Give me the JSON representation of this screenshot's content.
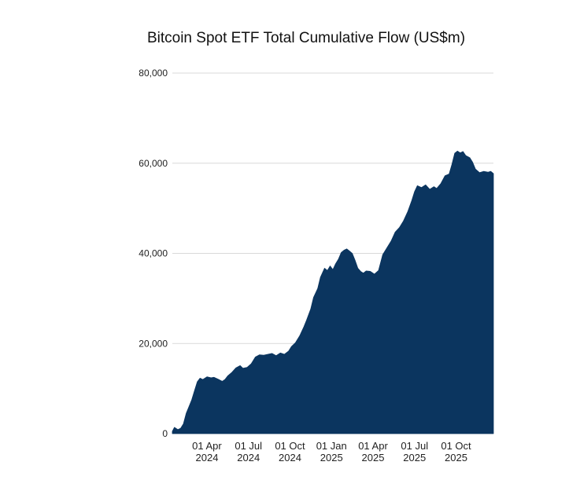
{
  "chart_data": {
    "type": "area",
    "title": "Bitcoin Spot ETF Total Cumulative Flow (US$m)",
    "xlabel": "",
    "ylabel": "",
    "ylim": [
      0,
      80000
    ],
    "grid": true,
    "y_ticks": [
      {
        "value": 0,
        "label": "0"
      },
      {
        "value": 20000,
        "label": "20,000"
      },
      {
        "value": 40000,
        "label": "40,000"
      },
      {
        "value": 60000,
        "label": "60,000"
      },
      {
        "value": 80000,
        "label": "80,000"
      }
    ],
    "x_ticks": [
      {
        "month": 2.5,
        "line1": "01 Apr",
        "line2": "2024"
      },
      {
        "month": 5.5,
        "line1": "01 Jul",
        "line2": "2024"
      },
      {
        "month": 8.5,
        "line1": "01 Oct",
        "line2": "2024"
      },
      {
        "month": 11.5,
        "line1": "01 Jan",
        "line2": "2025"
      },
      {
        "month": 14.5,
        "line1": "01 Apr",
        "line2": "2025"
      },
      {
        "month": 17.5,
        "line1": "01 Jul",
        "line2": "2025"
      },
      {
        "month": 20.5,
        "line1": "01 Oct",
        "line2": "2025"
      }
    ],
    "x_range_months": [
      0,
      23.2
    ],
    "series": [
      {
        "name": "Total Cumulative Flow",
        "color": "#0b355f",
        "points": [
          [
            0.0,
            500
          ],
          [
            0.15,
            1400
          ],
          [
            0.4,
            900
          ],
          [
            0.6,
            1200
          ],
          [
            0.8,
            2200
          ],
          [
            1.0,
            4500
          ],
          [
            1.2,
            6000
          ],
          [
            1.4,
            7500
          ],
          [
            1.6,
            9500
          ],
          [
            1.8,
            11500
          ],
          [
            2.0,
            12300
          ],
          [
            2.2,
            12000
          ],
          [
            2.5,
            12600
          ],
          [
            2.8,
            12400
          ],
          [
            3.0,
            12500
          ],
          [
            3.3,
            12100
          ],
          [
            3.6,
            11600
          ],
          [
            3.8,
            12000
          ],
          [
            4.0,
            12800
          ],
          [
            4.3,
            13600
          ],
          [
            4.6,
            14600
          ],
          [
            4.9,
            15100
          ],
          [
            5.1,
            14500
          ],
          [
            5.4,
            14700
          ],
          [
            5.7,
            15500
          ],
          [
            6.0,
            17000
          ],
          [
            6.3,
            17500
          ],
          [
            6.6,
            17400
          ],
          [
            6.9,
            17600
          ],
          [
            7.2,
            17800
          ],
          [
            7.5,
            17300
          ],
          [
            7.8,
            17900
          ],
          [
            8.1,
            17600
          ],
          [
            8.4,
            18300
          ],
          [
            8.6,
            19300
          ],
          [
            8.9,
            20200
          ],
          [
            9.2,
            21700
          ],
          [
            9.5,
            23700
          ],
          [
            9.7,
            25200
          ],
          [
            10.0,
            27700
          ],
          [
            10.2,
            30200
          ],
          [
            10.5,
            32200
          ],
          [
            10.7,
            34700
          ],
          [
            11.0,
            36700
          ],
          [
            11.2,
            36200
          ],
          [
            11.4,
            37200
          ],
          [
            11.6,
            36400
          ],
          [
            11.8,
            37700
          ],
          [
            12.0,
            38700
          ],
          [
            12.2,
            40200
          ],
          [
            12.4,
            40700
          ],
          [
            12.6,
            41000
          ],
          [
            12.8,
            40500
          ],
          [
            13.0,
            40000
          ],
          [
            13.2,
            38500
          ],
          [
            13.4,
            36700
          ],
          [
            13.6,
            36000
          ],
          [
            13.8,
            35600
          ],
          [
            14.0,
            36100
          ],
          [
            14.3,
            36000
          ],
          [
            14.6,
            35400
          ],
          [
            14.9,
            36200
          ],
          [
            15.2,
            39700
          ],
          [
            15.5,
            41200
          ],
          [
            15.8,
            42700
          ],
          [
            16.1,
            44700
          ],
          [
            16.4,
            45700
          ],
          [
            16.7,
            47200
          ],
          [
            17.0,
            49200
          ],
          [
            17.3,
            51700
          ],
          [
            17.5,
            53700
          ],
          [
            17.7,
            55000
          ],
          [
            18.0,
            54600
          ],
          [
            18.3,
            55200
          ],
          [
            18.6,
            54200
          ],
          [
            18.9,
            54800
          ],
          [
            19.1,
            54400
          ],
          [
            19.4,
            55500
          ],
          [
            19.7,
            57200
          ],
          [
            20.0,
            57600
          ],
          [
            20.2,
            59700
          ],
          [
            20.4,
            62200
          ],
          [
            20.6,
            62700
          ],
          [
            20.8,
            62300
          ],
          [
            21.0,
            62600
          ],
          [
            21.2,
            61700
          ],
          [
            21.5,
            61200
          ],
          [
            21.7,
            60200
          ],
          [
            21.9,
            58700
          ],
          [
            22.2,
            57900
          ],
          [
            22.5,
            58200
          ],
          [
            22.8,
            58000
          ],
          [
            23.0,
            58200
          ],
          [
            23.2,
            57700
          ]
        ]
      }
    ]
  }
}
